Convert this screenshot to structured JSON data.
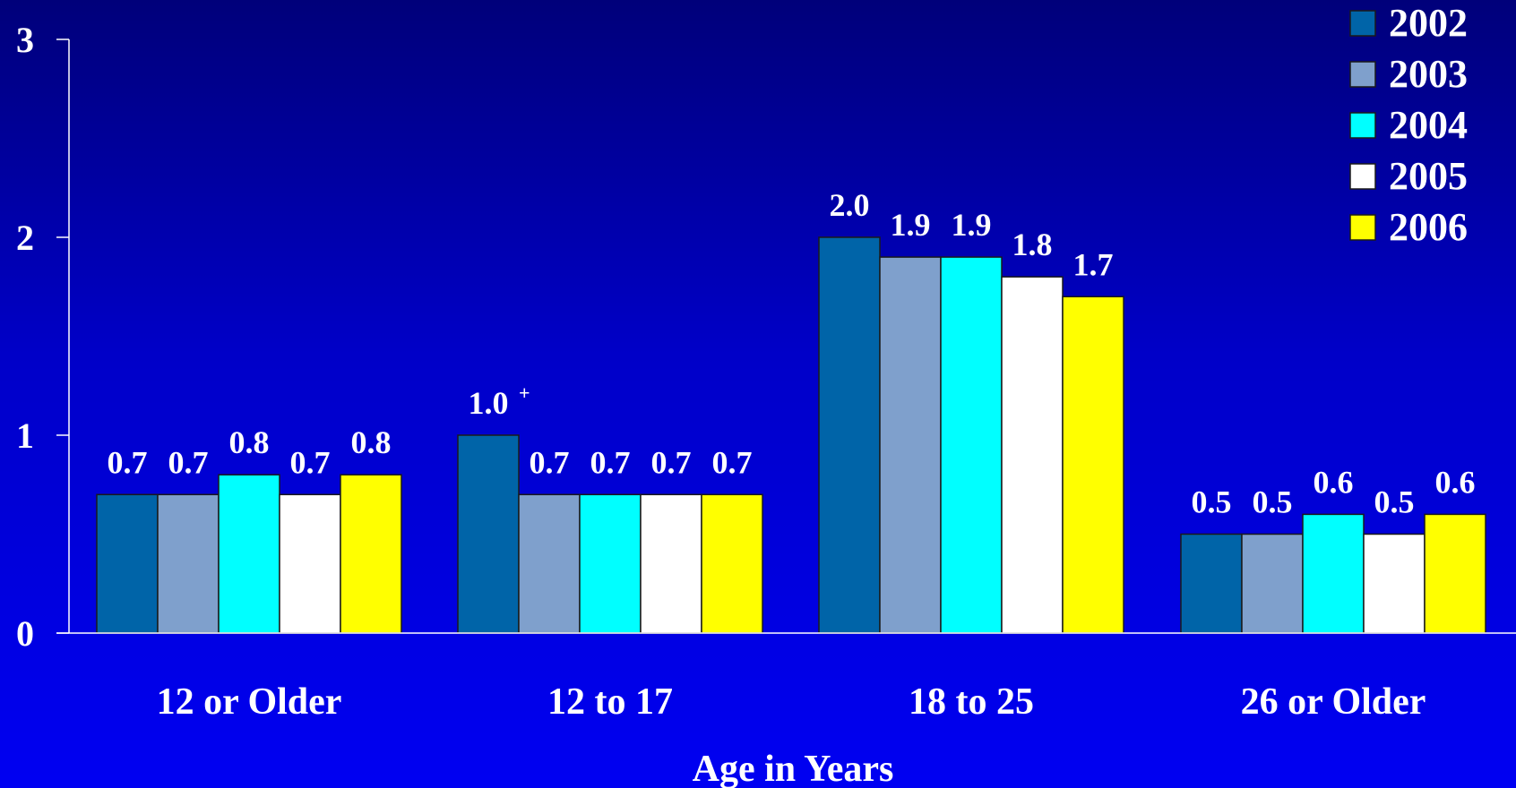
{
  "chart_data": {
    "type": "bar",
    "xlabel": "Age in Years",
    "ylabel": "",
    "ylim": [
      0,
      3
    ],
    "yticks": [
      "0",
      "1",
      "2",
      "3"
    ],
    "categories": [
      "12 or Older",
      "12 to 17",
      "18 to 25",
      "26 or Older"
    ],
    "series": [
      {
        "name": "2002",
        "color": "#0064a8",
        "values": [
          0.7,
          1.0,
          2.0,
          0.5
        ],
        "labels": [
          "0.7",
          "1.0",
          "2.0",
          "0.5"
        ],
        "markers": [
          "",
          "+",
          "",
          ""
        ]
      },
      {
        "name": "2003",
        "color": "#7fa0cc",
        "values": [
          0.7,
          0.7,
          1.9,
          0.5
        ],
        "labels": [
          "0.7",
          "0.7",
          "1.9",
          "0.5"
        ],
        "markers": [
          "",
          "",
          "",
          ""
        ]
      },
      {
        "name": "2004",
        "color": "#00ffff",
        "values": [
          0.8,
          0.7,
          1.9,
          0.6
        ],
        "labels": [
          "0.8",
          "0.7",
          "1.9",
          "0.6"
        ],
        "markers": [
          "",
          "",
          "",
          ""
        ]
      },
      {
        "name": "2005",
        "color": "#ffffff",
        "values": [
          0.7,
          0.7,
          1.8,
          0.5
        ],
        "labels": [
          "0.7",
          "0.7",
          "1.8",
          "0.5"
        ],
        "markers": [
          "",
          "",
          "",
          ""
        ]
      },
      {
        "name": "2006",
        "color": "#ffff00",
        "values": [
          0.8,
          0.7,
          1.7,
          0.6
        ],
        "labels": [
          "0.8",
          "0.7",
          "1.7",
          "0.6"
        ],
        "markers": [
          "",
          "",
          "",
          ""
        ]
      }
    ],
    "legend": "top-right",
    "grid": false
  }
}
